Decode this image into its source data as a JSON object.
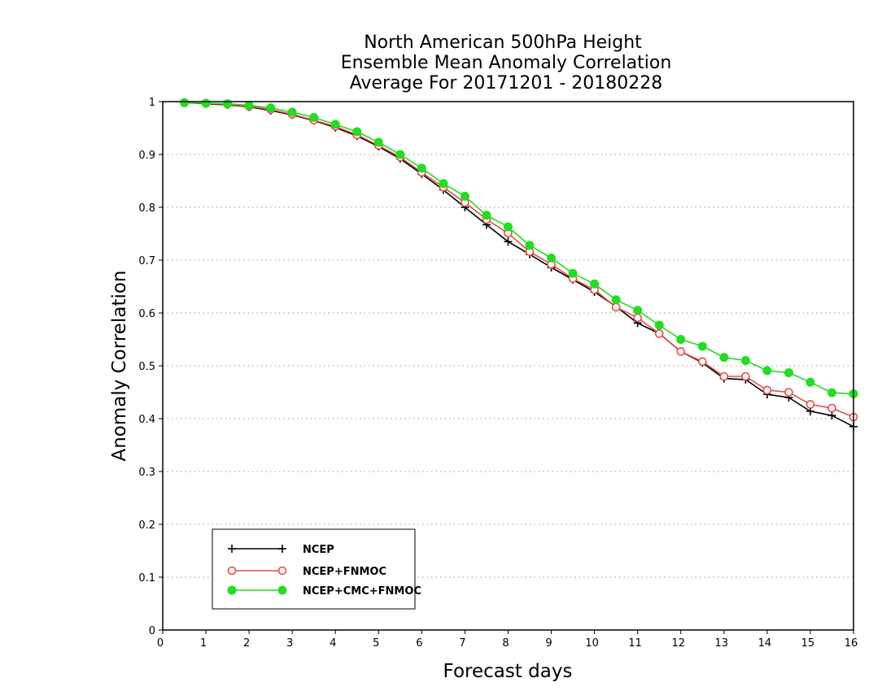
{
  "chart_data": {
    "type": "line",
    "title": [
      "North American 500hPa Height",
      "Ensemble Mean Anomaly Correlation",
      "Average For 20171201 - 20180228"
    ],
    "xlabel": "Forecast days",
    "ylabel": "Anomaly Correlation",
    "xlim": [
      0,
      16
    ],
    "ylim": [
      0,
      1
    ],
    "xticks": [
      0,
      1,
      2,
      3,
      4,
      5,
      6,
      7,
      8,
      9,
      10,
      11,
      12,
      13,
      14,
      15,
      16
    ],
    "yticks": [
      0,
      0.1,
      0.2,
      0.3,
      0.4,
      0.5,
      0.6,
      0.7,
      0.8,
      0.9,
      1
    ],
    "ytick_labels": [
      "0",
      "0.1",
      "0.2",
      "0.3",
      "0.4",
      "0.5",
      "0.6",
      "0.7",
      "0.8",
      "0.9",
      "1"
    ],
    "grid": "horizontal-dotted",
    "legend_position": "bottom-left",
    "x": [
      0.5,
      1,
      1.5,
      2,
      2.5,
      3,
      3.5,
      4,
      4.5,
      5,
      5.5,
      6,
      6.5,
      7,
      7.5,
      8,
      8.5,
      9,
      9.5,
      10,
      10.5,
      11,
      11.5,
      12,
      12.5,
      13,
      13.5,
      14,
      14.5,
      15,
      15.5,
      16
    ],
    "series": [
      {
        "name": "NCEP",
        "color": "#000000",
        "marker": "plus",
        "values": [
          0.998,
          0.996,
          0.994,
          0.99,
          0.983,
          0.975,
          0.964,
          0.951,
          0.935,
          0.915,
          0.892,
          0.863,
          0.833,
          0.8,
          0.767,
          0.735,
          0.711,
          0.686,
          0.663,
          0.64,
          0.612,
          0.581,
          0.561,
          0.527,
          0.506,
          0.476,
          0.474,
          0.446,
          0.44,
          0.414,
          0.406,
          0.385
        ]
      },
      {
        "name": "NCEP+FNMOC",
        "color": "#e84a4a",
        "marker": "open-circle",
        "values": [
          0.998,
          0.997,
          0.995,
          0.991,
          0.985,
          0.976,
          0.965,
          0.953,
          0.937,
          0.917,
          0.895,
          0.866,
          0.838,
          0.809,
          0.777,
          0.751,
          0.716,
          0.692,
          0.665,
          0.644,
          0.611,
          0.591,
          0.561,
          0.527,
          0.508,
          0.48,
          0.48,
          0.454,
          0.45,
          0.427,
          0.42,
          0.403
        ]
      },
      {
        "name": "NCEP+CMC+FNMOC",
        "color": "#22dd22",
        "marker": "filled-circle",
        "values": [
          0.998,
          0.997,
          0.996,
          0.993,
          0.988,
          0.98,
          0.97,
          0.957,
          0.943,
          0.923,
          0.9,
          0.874,
          0.845,
          0.821,
          0.785,
          0.763,
          0.728,
          0.704,
          0.675,
          0.655,
          0.625,
          0.605,
          0.577,
          0.55,
          0.537,
          0.516,
          0.51,
          0.491,
          0.487,
          0.469,
          0.449,
          0.447
        ]
      }
    ]
  }
}
